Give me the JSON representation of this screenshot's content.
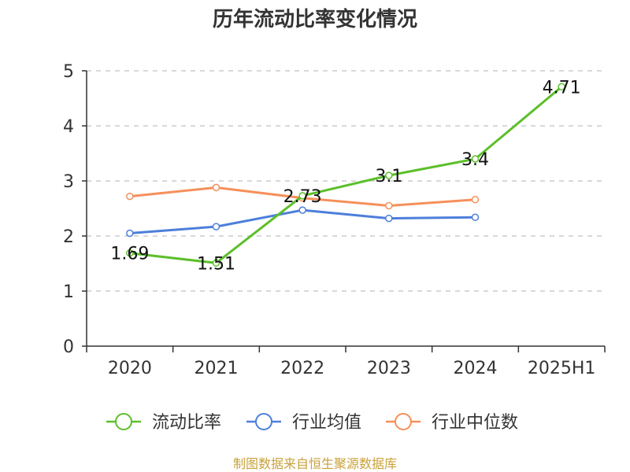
{
  "chart_data": {
    "type": "line",
    "title": "历年流动比率变化情况",
    "categories": [
      "2020",
      "2021",
      "2022",
      "2023",
      "2024",
      "2025H1"
    ],
    "ylim": [
      0,
      5
    ],
    "yticks": [
      "0",
      "1",
      "2",
      "3",
      "4",
      "5"
    ],
    "grid": true,
    "legend_position": "bottom",
    "series": [
      {
        "name": "流动比率",
        "color": "#5cbf2a",
        "values": [
          1.69,
          1.51,
          2.73,
          3.1,
          3.4,
          4.71
        ],
        "labels": [
          "1.69",
          "1.51",
          "2.73",
          "3.1",
          "3.4",
          "4.71"
        ]
      },
      {
        "name": "行业均值",
        "color": "#4d7fdb",
        "values": [
          2.05,
          2.17,
          2.47,
          2.32,
          2.34,
          null
        ]
      },
      {
        "name": "行业中位数",
        "color": "#f5905a",
        "values": [
          2.72,
          2.88,
          2.69,
          2.55,
          2.66,
          null
        ]
      }
    ],
    "source": "制图数据来自恒生聚源数据库"
  }
}
